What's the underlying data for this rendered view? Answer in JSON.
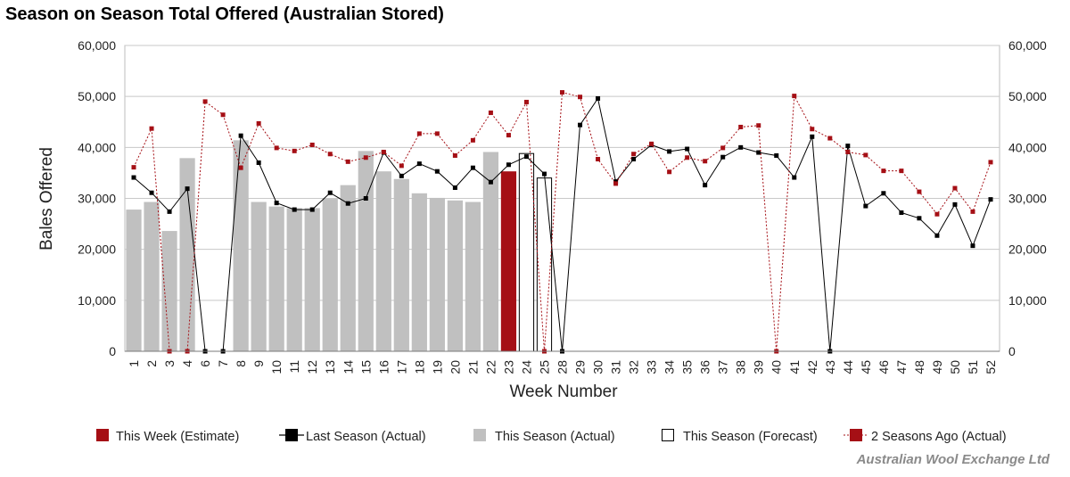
{
  "chart_data": {
    "type": "bar",
    "title": "Season on Season Total Offered (Australian Stored)",
    "xlabel": "Week Number",
    "ylabel": "Bales Offered",
    "ylim": [
      0,
      60000
    ],
    "yticks": [
      0,
      10000,
      20000,
      30000,
      40000,
      50000,
      60000
    ],
    "ytick_labels": [
      "0",
      "10,000",
      "20,000",
      "30,000",
      "40,000",
      "50,000",
      "60,000"
    ],
    "grid": true,
    "legend_position": "bottom",
    "categories": [
      "1",
      "2",
      "3",
      "4",
      "6",
      "7",
      "8",
      "9",
      "10",
      "11",
      "12",
      "13",
      "14",
      "15",
      "16",
      "17",
      "18",
      "19",
      "20",
      "21",
      "22",
      "23",
      "24",
      "25",
      "28",
      "29",
      "30",
      "31",
      "32",
      "33",
      "34",
      "35",
      "36",
      "37",
      "38",
      "39",
      "40",
      "41",
      "42",
      "43",
      "44",
      "45",
      "46",
      "47",
      "48",
      "49",
      "50",
      "51",
      "52"
    ],
    "series": [
      {
        "name": "This Week (Estimate)",
        "kind": "bar",
        "color": "#a50f15",
        "values": [
          null,
          null,
          null,
          null,
          null,
          null,
          null,
          null,
          null,
          null,
          null,
          null,
          null,
          null,
          null,
          null,
          null,
          null,
          null,
          null,
          null,
          35300,
          null,
          null,
          null,
          null,
          null,
          null,
          null,
          null,
          null,
          null,
          null,
          null,
          null,
          null,
          null,
          null,
          null,
          null,
          null,
          null,
          null,
          null,
          null,
          null,
          null,
          null,
          null
        ]
      },
      {
        "name": "Last Season (Actual)",
        "kind": "line",
        "color": "#000000",
        "values": [
          34100,
          31100,
          27400,
          31900,
          0,
          0,
          42300,
          37000,
          29100,
          27800,
          27800,
          31100,
          29000,
          30000,
          39000,
          34400,
          36800,
          35300,
          32100,
          36000,
          33200,
          36600,
          38200,
          34800,
          0,
          44400,
          49600,
          33300,
          37700,
          40500,
          39200,
          39700,
          32600,
          38100,
          40000,
          39000,
          38400,
          34100,
          42100,
          0,
          40300,
          28500,
          31000,
          27200,
          26100,
          22700,
          28800,
          20700,
          29800
        ]
      },
      {
        "name": "This Season (Actual)",
        "kind": "bar",
        "color": "#c0c0c0",
        "values": [
          27800,
          29300,
          23600,
          37900,
          null,
          null,
          41400,
          29300,
          28400,
          28100,
          28100,
          29900,
          32600,
          39300,
          35300,
          33800,
          31000,
          30100,
          29600,
          29300,
          39100,
          null,
          null,
          null,
          null,
          null,
          null,
          null,
          null,
          null,
          null,
          null,
          null,
          null,
          null,
          null,
          null,
          null,
          null,
          null,
          null,
          null,
          null,
          null,
          null,
          null,
          null,
          null,
          null
        ]
      },
      {
        "name": "This Season (Forecast)",
        "kind": "bar",
        "color": "#ffffff",
        "values": [
          null,
          null,
          null,
          null,
          null,
          null,
          null,
          null,
          null,
          null,
          null,
          null,
          null,
          null,
          null,
          null,
          null,
          null,
          null,
          null,
          null,
          null,
          38800,
          34000,
          null,
          null,
          null,
          null,
          null,
          null,
          null,
          null,
          null,
          null,
          null,
          null,
          null,
          null,
          null,
          null,
          null,
          null,
          null,
          null,
          null,
          null,
          null,
          null,
          null
        ]
      },
      {
        "name": "2 Seasons Ago (Actual)",
        "kind": "line",
        "color": "#a50f15",
        "values": [
          36100,
          43700,
          0,
          0,
          49000,
          46400,
          36000,
          44700,
          39900,
          39300,
          40500,
          38700,
          37200,
          38000,
          39100,
          36400,
          42700,
          42700,
          38400,
          41400,
          46800,
          42400,
          48900,
          0,
          50800,
          49900,
          37700,
          32900,
          38700,
          40700,
          35200,
          38000,
          37300,
          39900,
          44000,
          44300,
          0,
          50100,
          43600,
          41800,
          39100,
          38500,
          35400,
          35400,
          31300,
          26900,
          32000,
          27400,
          37100
        ]
      }
    ],
    "legend": [
      {
        "label": "This Week (Estimate)",
        "swatch": "bar-red"
      },
      {
        "label": "Last Season (Actual)",
        "swatch": "line-black"
      },
      {
        "label": "This Season (Actual)",
        "swatch": "bar-grey"
      },
      {
        "label": "This Season (Forecast)",
        "swatch": "bar-outline"
      },
      {
        "label": "2 Seasons Ago (Actual)",
        "swatch": "line-red-dotted"
      }
    ],
    "source": "Australian Wool Exchange Ltd"
  }
}
